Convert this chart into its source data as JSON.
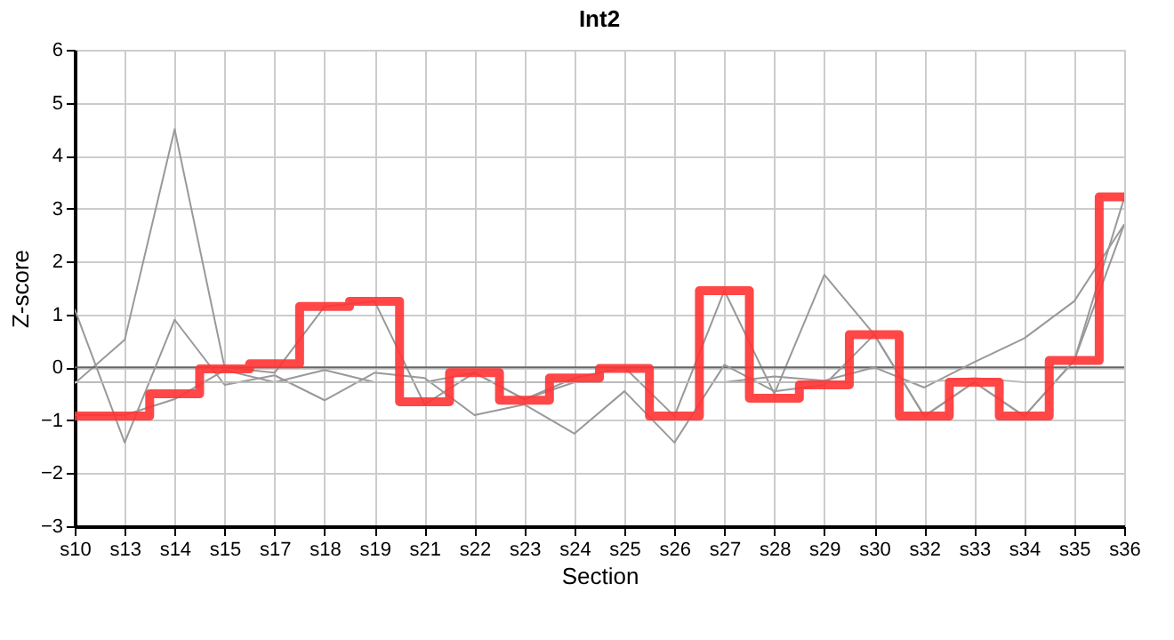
{
  "chart_data": {
    "type": "line",
    "title": "Int2",
    "xlabel": "Section",
    "ylabel": "Z-score",
    "categories": [
      "s10",
      "s13",
      "s14",
      "s15",
      "s17",
      "s18",
      "s19",
      "s21",
      "s22",
      "s23",
      "s24",
      "s25",
      "s26",
      "s27",
      "s28",
      "s29",
      "s30",
      "s32",
      "s33",
      "s34",
      "s35",
      "s36"
    ],
    "series": [
      {
        "color": "#999999",
        "values": [
          -0.3,
          0.52,
          4.5,
          0.0,
          -0.1,
          1.15,
          1.25,
          -0.7,
          -0.1,
          -0.6,
          -0.2,
          0.0,
          -0.92,
          1.45,
          -0.5,
          1.75,
          0.62,
          -0.92,
          -0.28,
          -0.92,
          0.13,
          3.2
        ]
      },
      {
        "color": "#999999",
        "values": [
          1.1,
          -1.42,
          0.9,
          -0.33,
          -0.15,
          -0.62,
          -0.1,
          -0.2,
          -0.9,
          -0.7,
          -1.25,
          -0.45,
          -1.42,
          0.05,
          -0.45,
          -0.33,
          0.62,
          -0.92,
          -0.28,
          -0.92,
          0.13,
          2.7
        ]
      },
      {
        "color": "#999999",
        "values": [
          -0.9,
          -0.9,
          -0.6,
          -0.05,
          -0.28,
          -0.05,
          -0.28,
          -0.28,
          -0.1,
          -0.6,
          -0.28,
          -0.28,
          -0.28,
          -0.28,
          -0.17,
          -0.25,
          0.0,
          -0.38,
          0.1,
          0.55,
          1.25,
          2.7
        ]
      },
      {
        "color": "#bbbbbb",
        "values": [
          -0.28,
          -0.28,
          -0.28,
          -0.28,
          -0.28,
          -0.28,
          -0.28,
          -0.28,
          -0.28,
          -0.28,
          -0.28,
          -0.28,
          -0.28,
          -0.28,
          -0.28,
          -0.28,
          -0.28,
          -0.28,
          -0.2,
          -0.28,
          -0.28,
          -0.28
        ]
      },
      {
        "type": "step",
        "color": "#ff3333",
        "values": [
          -0.92,
          -0.92,
          -0.5,
          -0.03,
          0.07,
          1.15,
          1.25,
          -0.65,
          -0.1,
          -0.62,
          -0.2,
          -0.02,
          -0.92,
          1.45,
          -0.58,
          -0.33,
          0.62,
          -0.92,
          -0.28,
          -0.92,
          0.13,
          3.22
        ]
      }
    ],
    "ylim": [
      -3,
      6
    ],
    "yticks": [
      -3,
      -2,
      -1,
      0,
      1,
      2,
      3,
      4,
      5,
      6
    ],
    "grid": true,
    "legend": false,
    "ref_lines": [
      {
        "axis": "y",
        "value": 0,
        "color": "#666666"
      }
    ]
  }
}
